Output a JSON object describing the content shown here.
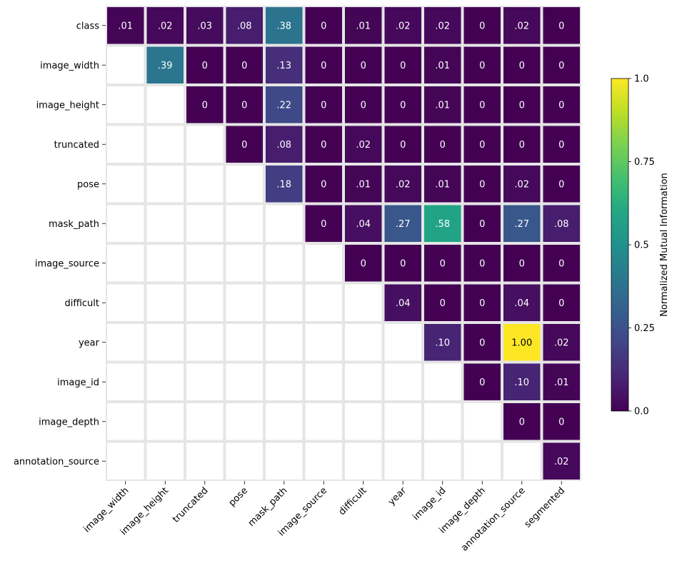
{
  "chart_data": {
    "type": "heatmap",
    "title": "",
    "xlabel": "",
    "ylabel": "",
    "rows": [
      "class",
      "image_width",
      "image_height",
      "truncated",
      "pose",
      "mask_path",
      "image_source",
      "difficult",
      "year",
      "image_id",
      "image_depth",
      "annotation_source"
    ],
    "columns": [
      "image_width",
      "image_height",
      "truncated",
      "pose",
      "mask_path",
      "image_source",
      "difficult",
      "year",
      "image_id",
      "image_depth",
      "annotation_source",
      "segmented"
    ],
    "values": [
      [
        0.01,
        0.02,
        0.03,
        0.08,
        0.38,
        0,
        0.01,
        0.02,
        0.02,
        0,
        0.02,
        0
      ],
      [
        null,
        0.39,
        0,
        0,
        0.13,
        0,
        0,
        0,
        0.01,
        0,
        0,
        0
      ],
      [
        null,
        null,
        0,
        0,
        0.22,
        0,
        0,
        0,
        0.01,
        0,
        0,
        0
      ],
      [
        null,
        null,
        null,
        0,
        0.08,
        0,
        0.02,
        0,
        0,
        0,
        0,
        0
      ],
      [
        null,
        null,
        null,
        null,
        0.18,
        0,
        0.01,
        0.02,
        0.01,
        0,
        0.02,
        0
      ],
      [
        null,
        null,
        null,
        null,
        null,
        0,
        0.04,
        0.27,
        0.58,
        0,
        0.27,
        0.08
      ],
      [
        null,
        null,
        null,
        null,
        null,
        null,
        0,
        0,
        0,
        0,
        0,
        0
      ],
      [
        null,
        null,
        null,
        null,
        null,
        null,
        null,
        0.04,
        0,
        0,
        0.04,
        0
      ],
      [
        null,
        null,
        null,
        null,
        null,
        null,
        null,
        null,
        0.1,
        0,
        1.0,
        0.02
      ],
      [
        null,
        null,
        null,
        null,
        null,
        null,
        null,
        null,
        null,
        0,
        0.1,
        0.01
      ],
      [
        null,
        null,
        null,
        null,
        null,
        null,
        null,
        null,
        null,
        null,
        0,
        0
      ],
      [
        null,
        null,
        null,
        null,
        null,
        null,
        null,
        null,
        null,
        null,
        null,
        0.02
      ]
    ],
    "cell_labels": [
      [
        ".01",
        ".02",
        ".03",
        ".08",
        ".38",
        "0",
        ".01",
        ".02",
        ".02",
        "0",
        ".02",
        "0"
      ],
      [
        null,
        ".39",
        "0",
        "0",
        ".13",
        "0",
        "0",
        "0",
        ".01",
        "0",
        "0",
        "0"
      ],
      [
        null,
        null,
        "0",
        "0",
        ".22",
        "0",
        "0",
        "0",
        ".01",
        "0",
        "0",
        "0"
      ],
      [
        null,
        null,
        null,
        "0",
        ".08",
        "0",
        ".02",
        "0",
        "0",
        "0",
        "0",
        "0"
      ],
      [
        null,
        null,
        null,
        null,
        ".18",
        "0",
        ".01",
        ".02",
        ".01",
        "0",
        ".02",
        "0"
      ],
      [
        null,
        null,
        null,
        null,
        null,
        "0",
        ".04",
        ".27",
        ".58",
        "0",
        ".27",
        ".08"
      ],
      [
        null,
        null,
        null,
        null,
        null,
        null,
        "0",
        "0",
        "0",
        "0",
        "0",
        "0"
      ],
      [
        null,
        null,
        null,
        null,
        null,
        null,
        null,
        ".04",
        "0",
        "0",
        ".04",
        "0"
      ],
      [
        null,
        null,
        null,
        null,
        null,
        null,
        null,
        null,
        ".10",
        "0",
        "1.00",
        ".02"
      ],
      [
        null,
        null,
        null,
        null,
        null,
        null,
        null,
        null,
        null,
        "0",
        ".10",
        ".01"
      ],
      [
        null,
        null,
        null,
        null,
        null,
        null,
        null,
        null,
        null,
        null,
        "0",
        "0"
      ],
      [
        null,
        null,
        null,
        null,
        null,
        null,
        null,
        null,
        null,
        null,
        null,
        ".02"
      ]
    ],
    "colorscale": "viridis",
    "vmin": 0,
    "vmax": 1,
    "colorbar": {
      "label": "Normalized Mutual Information",
      "ticks": [
        0,
        0.25,
        0.5,
        0.75,
        1
      ],
      "tick_labels": [
        "0.0",
        "0.25",
        "0.5",
        "0.75",
        "1.0"
      ],
      "placement": "right"
    },
    "grid_line_color": "#e5e5e5",
    "empty_cell_color": "#ffffff"
  }
}
